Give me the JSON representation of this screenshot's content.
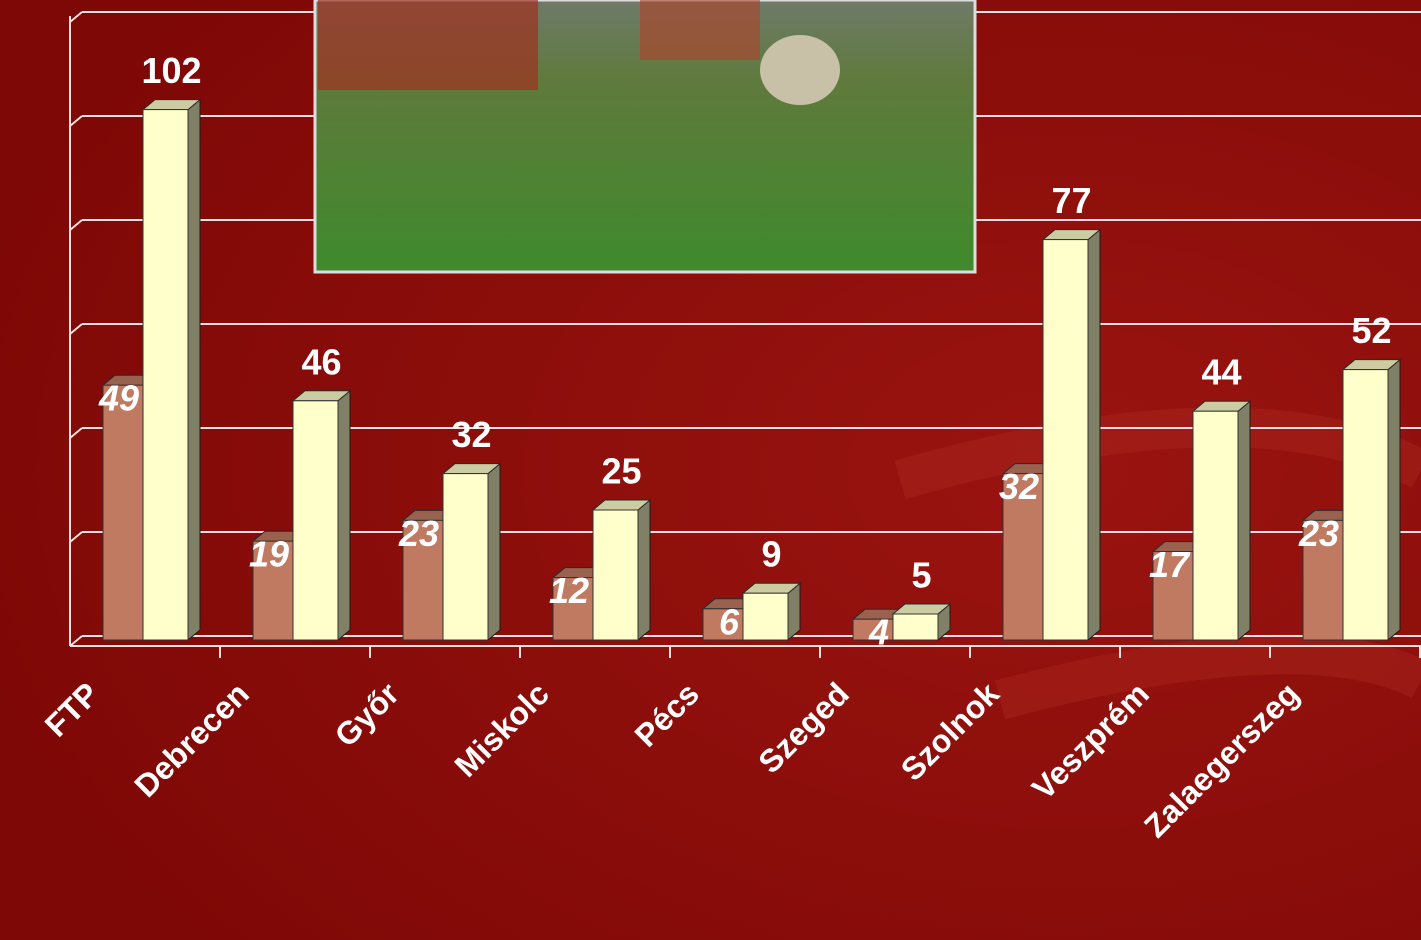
{
  "chart_data": {
    "type": "bar",
    "categories": [
      "FTP",
      "Debrecen",
      "Győr",
      "Miskolc",
      "Pécs",
      "Szeged",
      "Szolnok",
      "Veszprém",
      "Zalaegerszeg"
    ],
    "series": [
      {
        "color": "#c07a62",
        "values": [
          49,
          19,
          23,
          12,
          6,
          4,
          32,
          17,
          23
        ]
      },
      {
        "color": "#ffffcc",
        "values": [
          102,
          46,
          32,
          25,
          9,
          5,
          77,
          44,
          52
        ]
      }
    ],
    "ylim": [
      0,
      120
    ],
    "yticks": [
      0,
      20,
      40,
      60,
      80,
      100,
      120
    ],
    "grid": true
  }
}
